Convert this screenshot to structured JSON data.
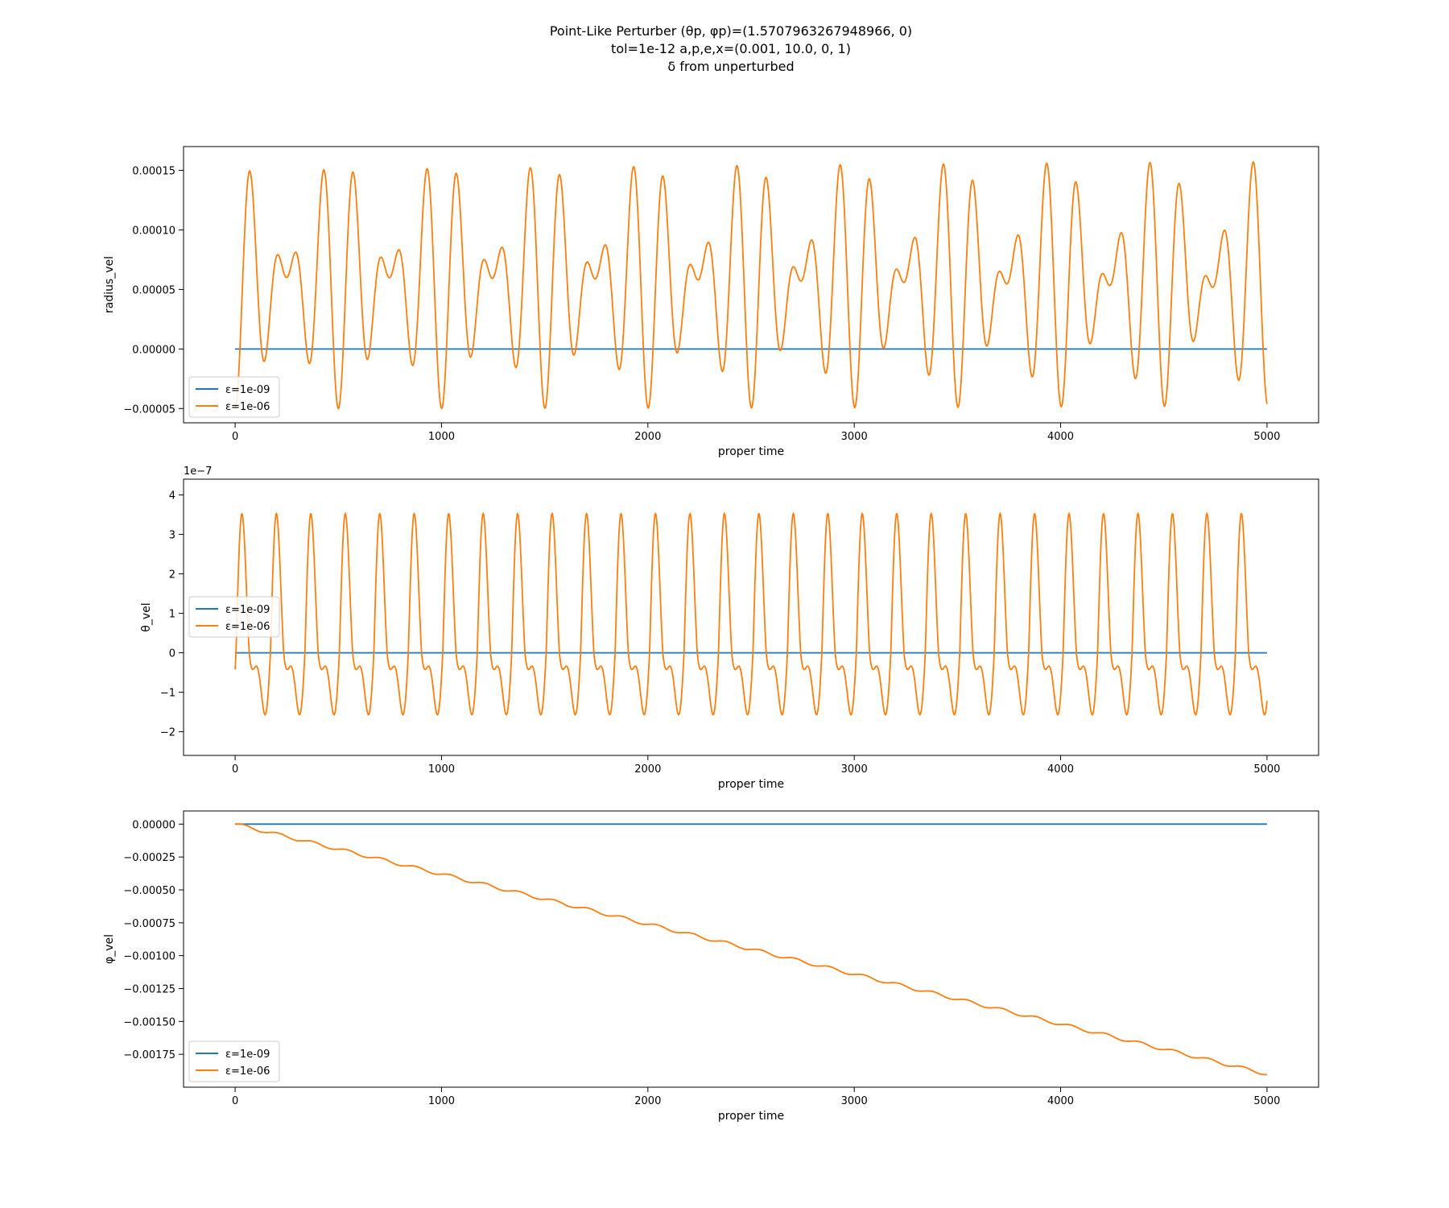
{
  "figure": {
    "title_lines": [
      "Point-Like Perturber (θp, φp)=(1.5707963267948966, 0)",
      "tol=1e-12 a,p,e,x=(0.001, 10.0, 0, 1)",
      "δ from unperturbed"
    ]
  },
  "colors": {
    "series_1": "#1f77b4",
    "series_2": "#ff7f0e"
  },
  "chart_data": [
    {
      "type": "line",
      "xlabel": "proper time",
      "ylabel": "radius_vel",
      "xlim": [
        -250,
        5250
      ],
      "ylim": [
        -6.2e-05,
        0.00017
      ],
      "xticks": [
        0,
        1000,
        2000,
        3000,
        4000,
        5000
      ],
      "xtick_labels": [
        "0",
        "1000",
        "2000",
        "3000",
        "4000",
        "5000"
      ],
      "yticks": [
        -5e-05,
        0,
        5e-05,
        0.0001,
        0.00015
      ],
      "ytick_labels": [
        "−0.00005",
        "0.00000",
        "0.00005",
        "0.00010",
        "0.00015"
      ],
      "offset_label": "",
      "legend": "lower-left",
      "series": [
        {
          "name": "ε=1e-09",
          "color": "#1f77b4",
          "model": "zero",
          "x_range": [
            0,
            5000
          ]
        },
        {
          "name": "ε=1e-06",
          "color": "#ff7f0e",
          "model": "radial",
          "x_range": [
            0,
            5000
          ],
          "components": [
            {
              "amplitude": 5.5e-05,
              "period": 167
            },
            {
              "amplitude": 5e-05,
              "period": 125
            }
          ],
          "offset": 5.5e-05
        }
      ]
    },
    {
      "type": "line",
      "xlabel": "proper time",
      "ylabel": "θ_vel",
      "xlim": [
        -250,
        5250
      ],
      "ylim": [
        -2.6,
        4.4
      ],
      "xticks": [
        0,
        1000,
        2000,
        3000,
        4000,
        5000
      ],
      "xtick_labels": [
        "0",
        "1000",
        "2000",
        "3000",
        "4000",
        "5000"
      ],
      "yticks": [
        -2,
        -1,
        0,
        1,
        2,
        3,
        4
      ],
      "ytick_labels": [
        "−2",
        "−1",
        "0",
        "1",
        "2",
        "3",
        "4"
      ],
      "offset_label": "1e−7",
      "legend": "center-left",
      "series": [
        {
          "name": "ε=1e-09",
          "color": "#1f77b4",
          "model": "zero",
          "x_range": [
            0,
            5000
          ]
        },
        {
          "name": "ε=1e-06",
          "color": "#ff7f0e",
          "model": "polar",
          "x_range": [
            0,
            5000
          ],
          "period": 167,
          "amplitude_a": 2.3,
          "amplitude_b": 1.8
        }
      ]
    },
    {
      "type": "line",
      "xlabel": "proper time",
      "ylabel": "φ_vel",
      "xlim": [
        -250,
        5250
      ],
      "ylim": [
        -0.002,
        0.0001
      ],
      "xticks": [
        0,
        1000,
        2000,
        3000,
        4000,
        5000
      ],
      "xtick_labels": [
        "0",
        "1000",
        "2000",
        "3000",
        "4000",
        "5000"
      ],
      "yticks": [
        0,
        -0.00025,
        -0.0005,
        -0.00075,
        -0.001,
        -0.00125,
        -0.0015,
        -0.00175
      ],
      "ytick_labels": [
        "0.00000",
        "−0.00025",
        "−0.00050",
        "−0.00075",
        "−0.00100",
        "−0.00125",
        "−0.00150",
        "−0.00175"
      ],
      "offset_label": "",
      "legend": "lower-left",
      "series": [
        {
          "name": "ε=1e-09",
          "color": "#1f77b4",
          "model": "zero",
          "x_range": [
            0,
            5000
          ]
        },
        {
          "name": "ε=1e-06",
          "color": "#ff7f0e",
          "model": "drift",
          "x_range": [
            0,
            5000
          ],
          "end_value": -0.0019,
          "ripple_amplitude": 1.2e-05,
          "ripple_period": 167
        }
      ]
    }
  ]
}
